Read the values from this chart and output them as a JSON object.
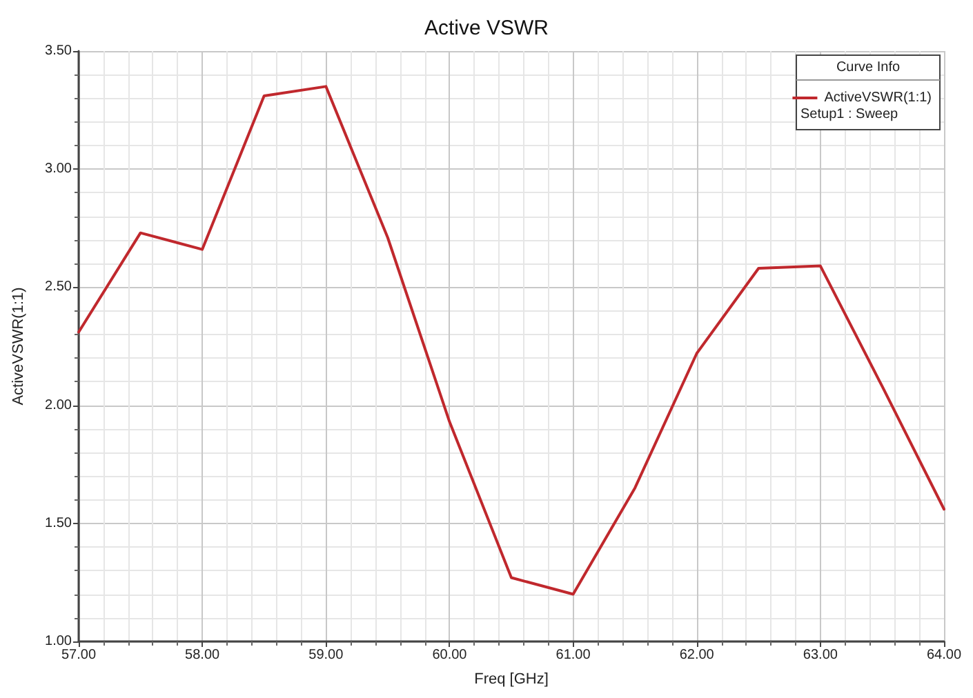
{
  "chart_data": {
    "type": "line",
    "title": "Active VSWR",
    "xlabel": "Freq [GHz]",
    "ylabel": "ActiveVSWR(1:1)",
    "legend_title": "Curve Info",
    "annotations": [
      "Setup1 : Sweep"
    ],
    "x": [
      57,
      57.5,
      58,
      58.5,
      59,
      59.5,
      60,
      60.5,
      61,
      61.5,
      62,
      62.5,
      63,
      63.5,
      64
    ],
    "series": [
      {
        "name": "ActiveVSWR(1:1)",
        "color": "#c0282d",
        "values": [
          2.31,
          2.73,
          2.66,
          3.31,
          3.35,
          2.71,
          1.93,
          1.27,
          1.2,
          1.65,
          2.22,
          2.58,
          2.59,
          2.08,
          1.56
        ]
      }
    ],
    "xlim": [
      57,
      64
    ],
    "xticks": [
      {
        "value": 57,
        "label": "57.00"
      },
      {
        "value": 58,
        "label": "58.00"
      },
      {
        "value": 59,
        "label": "59.00"
      },
      {
        "value": 60,
        "label": "60.00"
      },
      {
        "value": 61,
        "label": "61.00"
      },
      {
        "value": 62,
        "label": "62.00"
      },
      {
        "value": 63,
        "label": "63.00"
      },
      {
        "value": 64,
        "label": "64.00"
      }
    ],
    "ylim": [
      1,
      3.5
    ],
    "yticks": [
      {
        "value": 1,
        "label": "1.00"
      },
      {
        "value": 1.5,
        "label": "1.50"
      },
      {
        "value": 2,
        "label": "2.00"
      },
      {
        "value": 2.5,
        "label": "2.50"
      },
      {
        "value": 3,
        "label": "3.00"
      },
      {
        "value": 3.5,
        "label": "3.50"
      }
    ],
    "grid": true,
    "legend": "top right",
    "marker": "none",
    "line_style": "solid"
  }
}
